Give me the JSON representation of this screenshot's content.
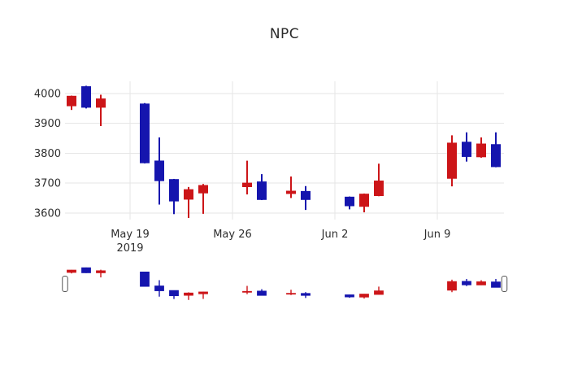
{
  "title": "NPC",
  "chart_data": {
    "type": "candlestick",
    "title": "NPC",
    "xlabel": "",
    "ylabel": "",
    "y_ticks": [
      3600,
      3700,
      3800,
      3900,
      4000
    ],
    "ylim": [
      3577,
      4041
    ],
    "grid": true,
    "grid_color": "#e6e6e6",
    "tick_text_color": "#2e2e2e",
    "increasing_color": "#cc1518",
    "decreasing_color": "#1515ae",
    "has_rangeslider": true,
    "x_ticks": [
      {
        "label": "May 19",
        "sublabel": "2019",
        "date": "2019-05-19"
      },
      {
        "label": "May 26",
        "date": "2019-05-26"
      },
      {
        "label": "Jun 2",
        "date": "2019-06-02"
      },
      {
        "label": "Jun 9",
        "date": "2019-06-09"
      }
    ],
    "candles": [
      {
        "date": "2019-05-15",
        "open": 3959,
        "high": 3993,
        "low": 3945,
        "close": 3991
      },
      {
        "date": "2019-05-16",
        "open": 4023,
        "high": 4026,
        "low": 3950,
        "close": 3954
      },
      {
        "date": "2019-05-17",
        "open": 3954,
        "high": 3996,
        "low": 3891,
        "close": 3982
      },
      {
        "date": "2019-05-20",
        "open": 3965,
        "high": 3968,
        "low": 3766,
        "close": 3768
      },
      {
        "date": "2019-05-21",
        "open": 3774,
        "high": 3853,
        "low": 3628,
        "close": 3708
      },
      {
        "date": "2019-05-22",
        "open": 3712,
        "high": 3714,
        "low": 3596,
        "close": 3640
      },
      {
        "date": "2019-05-23",
        "open": 3646,
        "high": 3687,
        "low": 3583,
        "close": 3678
      },
      {
        "date": "2019-05-24",
        "open": 3667,
        "high": 3697,
        "low": 3597,
        "close": 3692
      },
      {
        "date": "2019-05-27",
        "open": 3688,
        "high": 3775,
        "low": 3662,
        "close": 3700
      },
      {
        "date": "2019-05-28",
        "open": 3704,
        "high": 3730,
        "low": 3643,
        "close": 3645
      },
      {
        "date": "2019-05-30",
        "open": 3665,
        "high": 3722,
        "low": 3650,
        "close": 3673
      },
      {
        "date": "2019-05-31",
        "open": 3672,
        "high": 3690,
        "low": 3610,
        "close": 3645
      },
      {
        "date": "2019-06-03",
        "open": 3653,
        "high": 3655,
        "low": 3612,
        "close": 3624
      },
      {
        "date": "2019-06-04",
        "open": 3622,
        "high": 3665,
        "low": 3602,
        "close": 3663
      },
      {
        "date": "2019-06-05",
        "open": 3658,
        "high": 3765,
        "low": 3656,
        "close": 3707
      },
      {
        "date": "2019-06-10",
        "open": 3716,
        "high": 3860,
        "low": 3689,
        "close": 3834
      },
      {
        "date": "2019-06-11",
        "open": 3837,
        "high": 3870,
        "low": 3772,
        "close": 3789
      },
      {
        "date": "2019-06-12",
        "open": 3788,
        "high": 3853,
        "low": 3785,
        "close": 3831
      },
      {
        "date": "2019-06-13",
        "open": 3829,
        "high": 3870,
        "low": 3753,
        "close": 3755
      }
    ]
  }
}
